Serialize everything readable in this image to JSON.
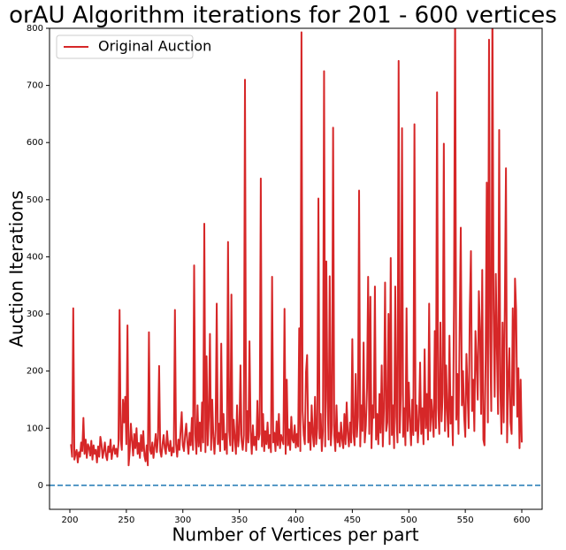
{
  "chart_data": {
    "type": "line",
    "title": "orAU Algorithm iterations for 201 - 600 vertices",
    "xlabel": "Number of Vertices per part",
    "ylabel": "Auction Iterations",
    "legend": "upper left",
    "xlim": [
      182,
      618
    ],
    "ylim": [
      -42,
      800
    ],
    "xticks": [
      200,
      250,
      300,
      350,
      400,
      450,
      500,
      550,
      600
    ],
    "yticks": [
      0,
      100,
      200,
      300,
      400,
      500,
      600,
      700,
      800
    ],
    "hline": {
      "value": 0,
      "color": "#1f77b4"
    },
    "x": [
      201,
      202,
      203,
      204,
      205,
      206,
      207,
      208,
      209,
      210,
      211,
      212,
      213,
      214,
      215,
      216,
      217,
      218,
      219,
      220,
      221,
      222,
      223,
      224,
      225,
      226,
      227,
      228,
      229,
      230,
      231,
      232,
      233,
      234,
      235,
      236,
      237,
      238,
      239,
      240,
      241,
      242,
      243,
      244,
      245,
      246,
      247,
      248,
      249,
      250,
      251,
      252,
      253,
      254,
      255,
      256,
      257,
      258,
      259,
      260,
      261,
      262,
      263,
      264,
      265,
      266,
      267,
      268,
      269,
      270,
      271,
      272,
      273,
      274,
      275,
      276,
      277,
      278,
      279,
      280,
      281,
      282,
      283,
      284,
      285,
      286,
      287,
      288,
      289,
      290,
      291,
      292,
      293,
      294,
      295,
      296,
      297,
      298,
      299,
      300,
      301,
      302,
      303,
      304,
      305,
      306,
      307,
      308,
      309,
      310,
      311,
      312,
      313,
      314,
      315,
      316,
      317,
      318,
      319,
      320,
      321,
      322,
      323,
      324,
      325,
      326,
      327,
      328,
      329,
      330,
      331,
      332,
      333,
      334,
      335,
      336,
      337,
      338,
      339,
      340,
      341,
      342,
      343,
      344,
      345,
      346,
      347,
      348,
      349,
      350,
      351,
      352,
      353,
      354,
      355,
      356,
      357,
      358,
      359,
      360,
      361,
      362,
      363,
      364,
      365,
      366,
      367,
      368,
      369,
      370,
      371,
      372,
      373,
      374,
      375,
      376,
      377,
      378,
      379,
      380,
      381,
      382,
      383,
      384,
      385,
      386,
      387,
      388,
      389,
      390,
      391,
      392,
      393,
      394,
      395,
      396,
      397,
      398,
      399,
      400,
      401,
      402,
      403,
      404,
      405,
      406,
      407,
      408,
      409,
      410,
      411,
      412,
      413,
      414,
      415,
      416,
      417,
      418,
      419,
      420,
      421,
      422,
      423,
      424,
      425,
      426,
      427,
      428,
      429,
      430,
      431,
      432,
      433,
      434,
      435,
      436,
      437,
      438,
      439,
      440,
      441,
      442,
      443,
      444,
      445,
      446,
      447,
      448,
      449,
      450,
      451,
      452,
      453,
      454,
      455,
      456,
      457,
      458,
      459,
      460,
      461,
      462,
      463,
      464,
      465,
      466,
      467,
      468,
      469,
      470,
      471,
      472,
      473,
      474,
      475,
      476,
      477,
      478,
      479,
      480,
      481,
      482,
      483,
      484,
      485,
      486,
      487,
      488,
      489,
      490,
      491,
      492,
      493,
      494,
      495,
      496,
      497,
      498,
      499,
      500,
      501,
      502,
      503,
      504,
      505,
      506,
      507,
      508,
      509,
      510,
      511,
      512,
      513,
      514,
      515,
      516,
      517,
      518,
      519,
      520,
      521,
      522,
      523,
      524,
      525,
      526,
      527,
      528,
      529,
      530,
      531,
      532,
      533,
      534,
      535,
      536,
      537,
      538,
      539,
      540,
      541,
      542,
      543,
      544,
      545,
      546,
      547,
      548,
      549,
      550,
      551,
      552,
      553,
      554,
      555,
      556,
      557,
      558,
      559,
      560,
      561,
      562,
      563,
      564,
      565,
      566,
      567,
      568,
      569,
      570,
      571,
      572,
      573,
      574,
      575,
      576,
      577,
      578,
      579,
      580,
      581,
      582,
      583,
      584,
      585,
      586,
      587,
      588,
      589,
      590,
      591,
      592,
      593,
      594,
      595,
      596,
      597,
      598,
      599,
      600
    ],
    "series": [
      {
        "name": "Original Auction",
        "color": "#d62728",
        "values": [
          72,
          50,
          310,
          45,
          55,
          62,
          40,
          58,
          50,
          75,
          60,
          118,
          55,
          80,
          48,
          72,
          66,
          52,
          78,
          45,
          70,
          55,
          62,
          40,
          68,
          50,
          85,
          72,
          48,
          60,
          75,
          52,
          44,
          68,
          58,
          80,
          46,
          62,
          70,
          55,
          64,
          50,
          72,
          307,
          80,
          62,
          150,
          110,
          155,
          72,
          280,
          35,
          60,
          108,
          78,
          52,
          90,
          65,
          100,
          55,
          74,
          48,
          88,
          60,
          95,
          52,
          42,
          70,
          35,
          268,
          62,
          55,
          75,
          48,
          68,
          90,
          58,
          82,
          209,
          60,
          50,
          72,
          88,
          65,
          55,
          95,
          70,
          60,
          78,
          52,
          66,
          58,
          307,
          72,
          50,
          80,
          62,
          95,
          128,
          70,
          60,
          88,
          108,
          75,
          55,
          92,
          70,
          118,
          62,
          385,
          90,
          55,
          140,
          68,
          110,
          60,
          145,
          75,
          458,
          58,
          226,
          70,
          120,
          265,
          62,
          150,
          85,
          55,
          98,
          318,
          72,
          108,
          60,
          248,
          80,
          125,
          62,
          90,
          55,
          426,
          95,
          70,
          334,
          60,
          115,
          82,
          55,
          140,
          68,
          90,
          210,
          78,
          62,
          88,
          710,
          60,
          130,
          75,
          252,
          95,
          55,
          105,
          70,
          85,
          62,
          148,
          80,
          90,
          537,
          68,
          125,
          60,
          95,
          72,
          110,
          65,
          88,
          58,
          365,
          75,
          92,
          60,
          112,
          70,
          125,
          65,
          88,
          80,
          72,
          309,
          55,
          185,
          70,
          98,
          62,
          120,
          80,
          75,
          105,
          66,
          90,
          68,
          275,
          60,
          793,
          130,
          88,
          72,
          198,
          228,
          75,
          110,
          62,
          140,
          90,
          68,
          155,
          72,
          100,
          502,
          82,
          125,
          60,
          95,
          725,
          68,
          392,
          150,
          80,
          366,
          70,
          105,
          626,
          88,
          60,
          140,
          75,
          92,
          68,
          110,
          80,
          65,
          125,
          72,
          145,
          90,
          68,
          110,
          75,
          256,
          92,
          70,
          195,
          85,
          120,
          516,
          68,
          140,
          95,
          250,
          75,
          105,
          170,
          365,
          90,
          330,
          65,
          140,
          118,
          348,
          80,
          125,
          72,
          160,
          92,
          210,
          68,
          135,
          355,
          95,
          110,
          300,
          72,
          398,
          88,
          140,
          65,
          348,
          120,
          75,
          743,
          92,
          160,
          625,
          85,
          135,
          70,
          310,
          95,
          180,
          112,
          70,
          150,
          88,
          632,
          95,
          140,
          75,
          115,
          215,
          90,
          135,
          72,
          238,
          100,
          160,
          80,
          318,
          95,
          150,
          120,
          85,
          270,
          100,
          688,
          135,
          90,
          285,
          112,
          160,
          598,
          95,
          210,
          130,
          85,
          262,
          108,
          155,
          70,
          320,
          850,
          115,
          195,
          90,
          275,
          451,
          140,
          200,
          120,
          85,
          230,
          165,
          100,
          310,
          410,
          130,
          185,
          95,
          270,
          215,
          150,
          340,
          270,
          125,
          377,
          80,
          70,
          220,
          530,
          110,
          780,
          260,
          130,
          850,
          310,
          155,
          370,
          240,
          125,
          622,
          170,
          90,
          285,
          110,
          315,
          555,
          75,
          180,
          240,
          110,
          90,
          310,
          140,
          362,
          307,
          120,
          205,
          65,
          185,
          75
        ]
      }
    ]
  }
}
